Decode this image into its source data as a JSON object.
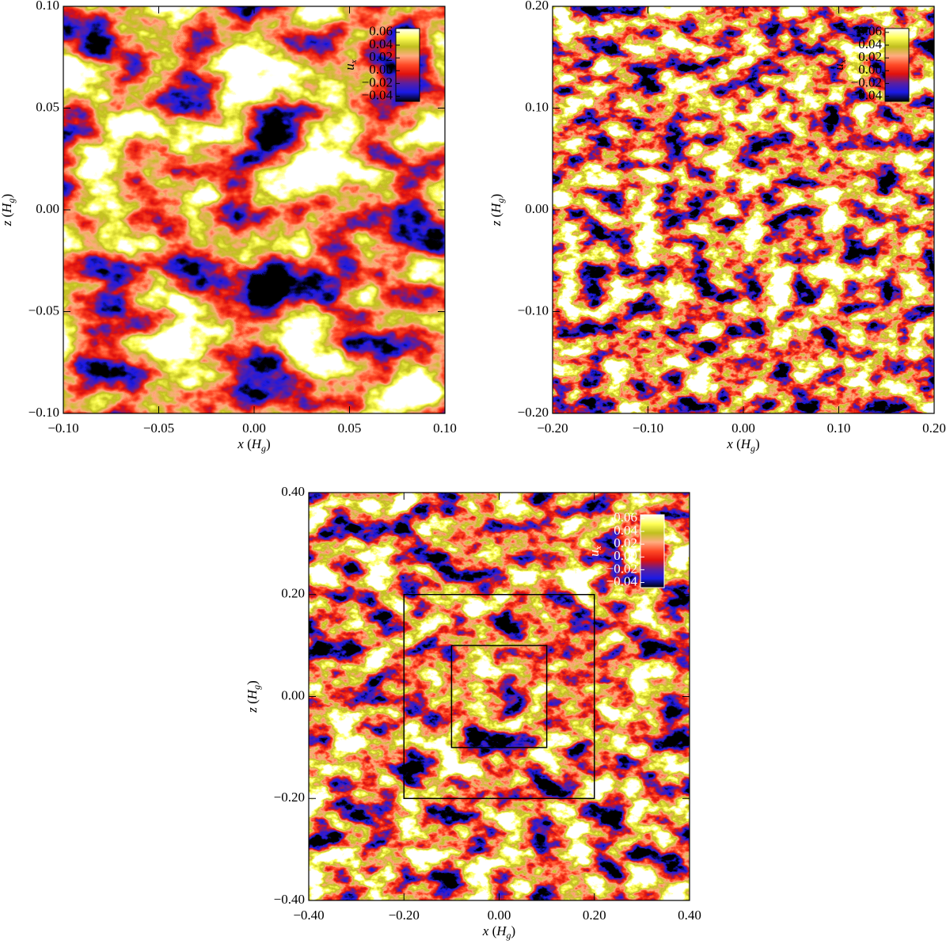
{
  "chart_data": [
    {
      "type": "heatmap",
      "xlabel": "x (Hg)",
      "ylabel": "z (Hg)",
      "xlim": [
        -0.1,
        0.1
      ],
      "ylim": [
        -0.1,
        0.1
      ],
      "xticks": [
        {
          "value": -0.1,
          "label": "−0.10"
        },
        {
          "value": -0.05,
          "label": "−0.05"
        },
        {
          "value": 0,
          "label": "0.00"
        },
        {
          "value": 0.05,
          "label": "0.05"
        },
        {
          "value": 0.1,
          "label": "0.10"
        }
      ],
      "yticks": [
        {
          "value": -0.1,
          "label": "−0.10"
        },
        {
          "value": -0.05,
          "label": "−0.05"
        },
        {
          "value": 0,
          "label": "0.00"
        },
        {
          "value": 0.05,
          "label": "0.05"
        },
        {
          "value": 0.1,
          "label": "0.10"
        }
      ],
      "colorbar": {
        "label": "ux",
        "lim": [
          -0.048,
          0.066
        ],
        "text_color": "#000000",
        "ticks": [
          {
            "value": 0.06,
            "label": "0.06"
          },
          {
            "value": 0.04,
            "label": "0.04"
          },
          {
            "value": 0.02,
            "label": "0.02"
          },
          {
            "value": 0,
            "label": "0.00"
          },
          {
            "value": -0.02,
            "label": "−0.02"
          },
          {
            "value": -0.04,
            "label": "−0.04"
          }
        ]
      },
      "colormap": [
        "#000000",
        "#1a1ae6",
        "#5a1fa0",
        "#e0100c",
        "#ff4a26",
        "#ffac80",
        "#c0bf1e",
        "#ffff55",
        "#ffffff"
      ]
    },
    {
      "type": "heatmap",
      "xlabel": "x (Hg)",
      "ylabel": "z (Hg)",
      "xlim": [
        -0.2,
        0.2
      ],
      "ylim": [
        -0.2,
        0.2
      ],
      "xticks": [
        {
          "value": -0.2,
          "label": "−0.20"
        },
        {
          "value": -0.1,
          "label": "−0.10"
        },
        {
          "value": 0,
          "label": "0.00"
        },
        {
          "value": 0.1,
          "label": "0.10"
        },
        {
          "value": 0.2,
          "label": "0.20"
        }
      ],
      "yticks": [
        {
          "value": -0.2,
          "label": "−0.20"
        },
        {
          "value": -0.1,
          "label": "−0.10"
        },
        {
          "value": 0,
          "label": "0.00"
        },
        {
          "value": 0.1,
          "label": "0.10"
        },
        {
          "value": 0.2,
          "label": "0.20"
        }
      ],
      "colorbar": {
        "label": "ux",
        "lim": [
          -0.048,
          0.066
        ],
        "text_color": "#000000",
        "ticks": [
          {
            "value": 0.06,
            "label": "0.06"
          },
          {
            "value": 0.04,
            "label": "0.04"
          },
          {
            "value": 0.02,
            "label": "0.02"
          },
          {
            "value": 0,
            "label": "0.00"
          },
          {
            "value": -0.02,
            "label": "−0.02"
          },
          {
            "value": -0.04,
            "label": "−0.04"
          }
        ]
      },
      "colormap": [
        "#000000",
        "#1a1ae6",
        "#5a1fa0",
        "#e0100c",
        "#ff4a26",
        "#ffac80",
        "#c0bf1e",
        "#ffff55",
        "#ffffff"
      ]
    },
    {
      "type": "heatmap",
      "xlabel": "x (Hg)",
      "ylabel": "z (Hg)",
      "xlim": [
        -0.4,
        0.4
      ],
      "ylim": [
        -0.4,
        0.4
      ],
      "xticks": [
        {
          "value": -0.4,
          "label": "−0.40"
        },
        {
          "value": -0.2,
          "label": "−0.20"
        },
        {
          "value": 0,
          "label": "0.00"
        },
        {
          "value": 0.2,
          "label": "0.20"
        },
        {
          "value": 0.4,
          "label": "0.40"
        }
      ],
      "yticks": [
        {
          "value": -0.4,
          "label": "−0.40"
        },
        {
          "value": -0.2,
          "label": "−0.20"
        },
        {
          "value": 0,
          "label": "0.00"
        },
        {
          "value": 0.2,
          "label": "0.20"
        },
        {
          "value": 0.4,
          "label": "0.40"
        }
      ],
      "boxes": [
        {
          "xlim": [
            -0.2,
            0.2
          ],
          "ylim": [
            -0.2,
            0.2
          ]
        },
        {
          "xlim": [
            -0.1,
            0.1
          ],
          "ylim": [
            -0.1,
            0.1
          ]
        }
      ],
      "colorbar": {
        "label": "ux",
        "lim": [
          -0.048,
          0.066
        ],
        "text_color": "#ffffff",
        "ticks": [
          {
            "value": 0.06,
            "label": "0.06"
          },
          {
            "value": 0.04,
            "label": "0.04"
          },
          {
            "value": 0.02,
            "label": "0.02"
          },
          {
            "value": 0,
            "label": "0.00"
          },
          {
            "value": -0.02,
            "label": "−0.02"
          },
          {
            "value": -0.04,
            "label": "−0.04"
          }
        ]
      },
      "colormap": [
        "#000000",
        "#1a1ae6",
        "#5a1fa0",
        "#e0100c",
        "#ff4a26",
        "#ffac80",
        "#c0bf1e",
        "#ffff55",
        "#ffffff"
      ]
    }
  ]
}
